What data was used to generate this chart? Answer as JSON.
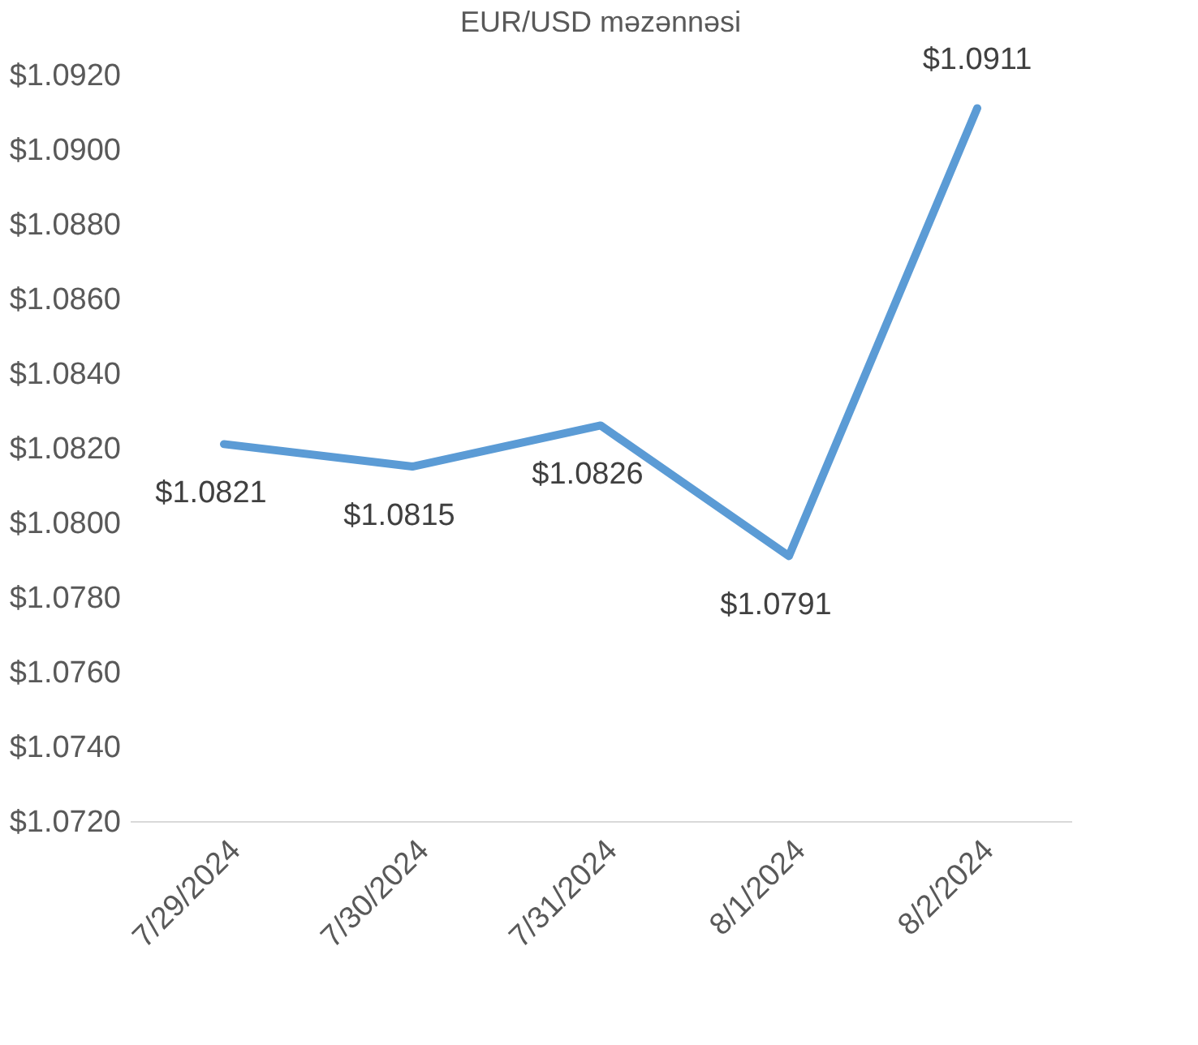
{
  "chart_data": {
    "type": "line",
    "title": "EUR/USD məzənnəsi",
    "categories": [
      "7/29/2024",
      "7/30/2024",
      "7/31/2024",
      "8/1/2024",
      "8/2/2024"
    ],
    "series": [
      {
        "color": "#5b9bd5",
        "values": [
          1.0821,
          1.0815,
          1.0826,
          1.0791,
          1.0911
        ],
        "value_labels": [
          "$1.0821",
          "$1.0815",
          "$1.0826",
          "$1.0791",
          "$1.0911"
        ]
      }
    ],
    "ylim": [
      1.072,
      1.092
    ],
    "yticks": [
      {
        "value": 1.072,
        "label": "$1.0720"
      },
      {
        "value": 1.074,
        "label": "$1.0740"
      },
      {
        "value": 1.076,
        "label": "$1.0760"
      },
      {
        "value": 1.078,
        "label": "$1.0780"
      },
      {
        "value": 1.08,
        "label": "$1.0800"
      },
      {
        "value": 1.082,
        "label": "$1.0820"
      },
      {
        "value": 1.084,
        "label": "$1.0840"
      },
      {
        "value": 1.086,
        "label": "$1.0860"
      },
      {
        "value": 1.088,
        "label": "$1.0880"
      },
      {
        "value": 1.09,
        "label": "$1.0900"
      },
      {
        "value": 1.092,
        "label": "$1.0920"
      }
    ],
    "grid": false,
    "marker": "none",
    "line_style": "solid"
  }
}
